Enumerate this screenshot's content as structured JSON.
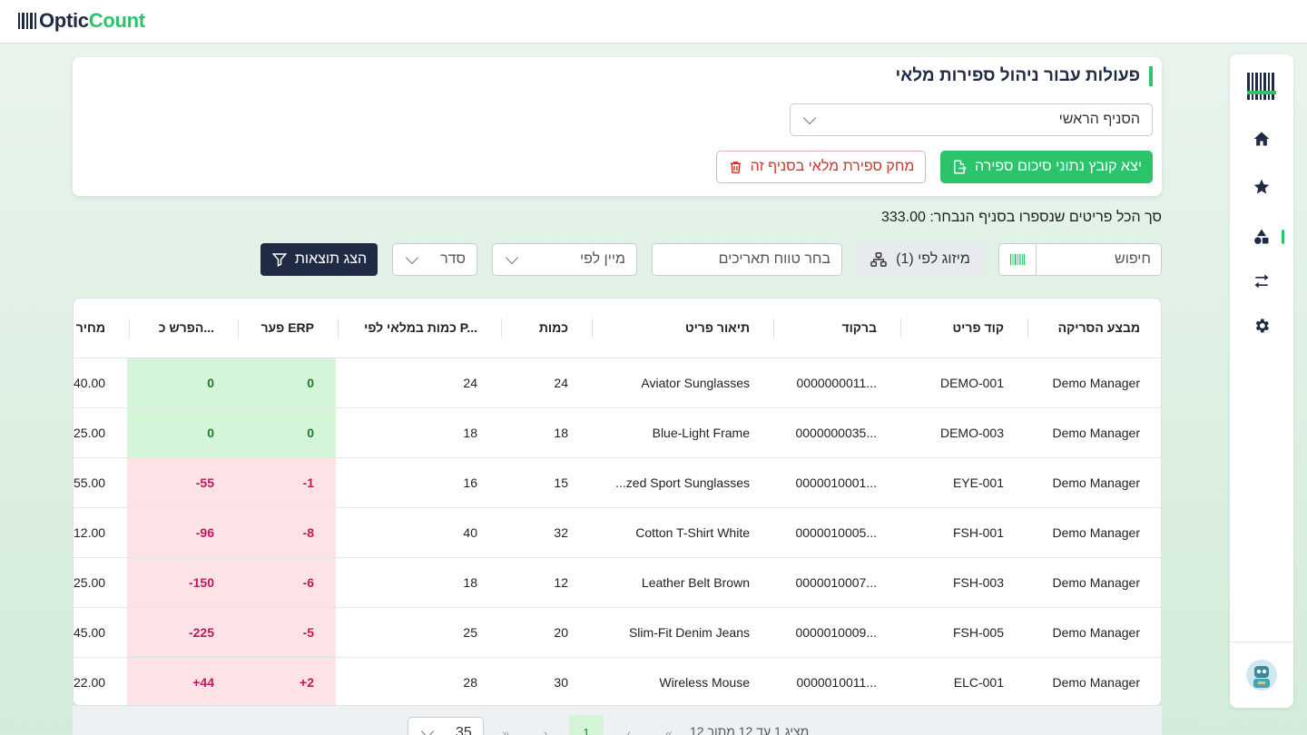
{
  "app": {
    "logo_part1": "Optic",
    "logo_part2": "Count"
  },
  "card": {
    "title": "פעולות עבור ניהול ספירות מלאי",
    "branch_value": "הסניף הראשי",
    "export_label": "יצא קובץ נתוני סיכום ספירה",
    "delete_label": "מחק ספירת מלאי בסניף זה"
  },
  "total_line": "סך הכל פריטים שנספרו בסניף הנבחר: 333.00",
  "filters": {
    "search_placeholder": "חיפוש",
    "merge_label": "מיזוג לפי (1)",
    "date_placeholder": "בחר טווח תאריכים",
    "sort_placeholder": "מיין לפי",
    "order_placeholder": "סדר",
    "show_results_label": "הצג תוצאות"
  },
  "table": {
    "headers": {
      "performer": "מבצע הסריקה",
      "code": "קוד פריט",
      "barcode": "ברקוד",
      "description": "תיאור פריט",
      "qty": "כמות",
      "stock_qty": "כמות במלאי לפי P...",
      "erp_diff": "פער ERP",
      "diff_cost": "הפרש כ...",
      "price": "מחיר"
    },
    "rows": [
      {
        "performer": "Demo Manager",
        "code": "DEMO-001",
        "barcode": "0000000011...",
        "description": "Aviator Sunglasses",
        "qty": "24",
        "stock_qty": "24",
        "erp_diff": "0",
        "diff_cost": "0",
        "price": "40.00",
        "status": "pos"
      },
      {
        "performer": "Demo Manager",
        "code": "DEMO-003",
        "barcode": "0000000035...",
        "description": "Blue-Light Frame",
        "qty": "18",
        "stock_qty": "18",
        "erp_diff": "0",
        "diff_cost": "0",
        "price": "25.00",
        "status": "pos"
      },
      {
        "performer": "Demo Manager",
        "code": "EYE-001",
        "barcode": "0000010001...",
        "description": "...zed Sport Sunglasses",
        "qty": "15",
        "stock_qty": "16",
        "erp_diff": "-1",
        "diff_cost": "-55",
        "price": "55.00",
        "status": "neg"
      },
      {
        "performer": "Demo Manager",
        "code": "FSH-001",
        "barcode": "0000010005...",
        "description": "Cotton T-Shirt White",
        "qty": "32",
        "stock_qty": "40",
        "erp_diff": "-8",
        "diff_cost": "-96",
        "price": "12.00",
        "status": "neg"
      },
      {
        "performer": "Demo Manager",
        "code": "FSH-003",
        "barcode": "0000010007...",
        "description": "Leather Belt Brown",
        "qty": "12",
        "stock_qty": "18",
        "erp_diff": "-6",
        "diff_cost": "-150",
        "price": "25.00",
        "status": "neg"
      },
      {
        "performer": "Demo Manager",
        "code": "FSH-005",
        "barcode": "0000010009...",
        "description": "Slim-Fit Denim Jeans",
        "qty": "20",
        "stock_qty": "25",
        "erp_diff": "-5",
        "diff_cost": "-225",
        "price": "45.00",
        "status": "neg"
      },
      {
        "performer": "Demo Manager",
        "code": "ELC-001",
        "barcode": "0000010011...",
        "description": "Wireless Mouse",
        "qty": "30",
        "stock_qty": "28",
        "erp_diff": "+2",
        "diff_cost": "+44",
        "price": "22.00",
        "status": "neg"
      }
    ]
  },
  "pagination": {
    "info": "מציג 1 עד 12 מתוך 12",
    "current_page": "1",
    "page_size": "35"
  },
  "colors": {
    "brand_green": "#2cc46b",
    "navy": "#1f2a44",
    "danger": "#d0342c",
    "pos_bg": "#d4f5d7",
    "neg_bg": "#fde3e6"
  },
  "icons": [
    "barcode-logo-icon",
    "home-icon",
    "star-icon",
    "shapes-icon",
    "swap-icon",
    "gear-icon",
    "avatar-icon",
    "chevron-down-icon",
    "file-export-icon",
    "trash-icon",
    "barcode-icon",
    "merge-icon",
    "filter-icon"
  ]
}
